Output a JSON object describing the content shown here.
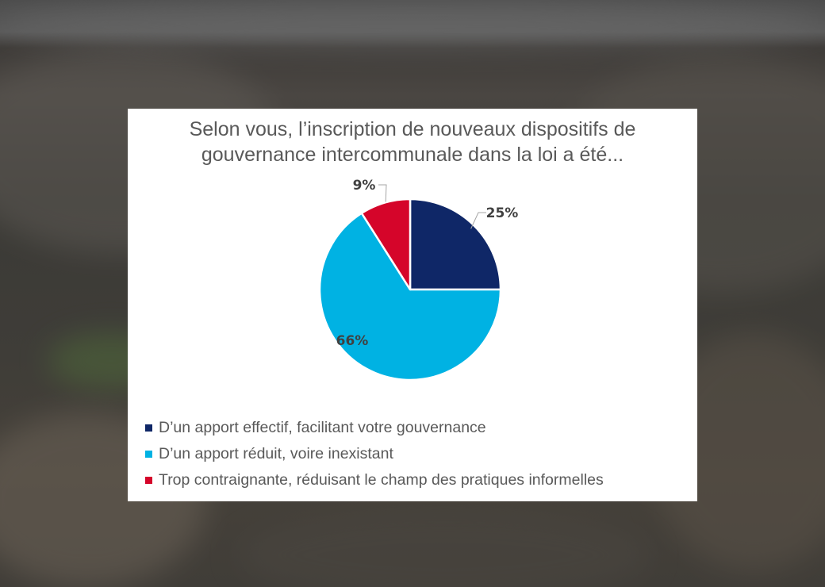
{
  "chart_data": {
    "type": "pie",
    "title": "Selon vous, l’inscription de nouveaux dispositifs de\ngouvernance intercommunale dans la loi a été...",
    "slices": [
      {
        "label": "D’un apport effectif, facilitant votre gouvernance",
        "value": 25,
        "display": "25%",
        "color": "#0f2767"
      },
      {
        "label": "D’un apport réduit, voire inexistant",
        "value": 66,
        "display": "66%",
        "color": "#00b2e3"
      },
      {
        "label": "Trop contraignante, réduisant le champ des pratiques informelles",
        "value": 9,
        "display": "9%",
        "color": "#d5052a"
      }
    ],
    "legend_position": "bottom-left"
  },
  "colors": {
    "label_text": "#404040",
    "legend_text": "#595959",
    "card_background": "#ffffff"
  }
}
